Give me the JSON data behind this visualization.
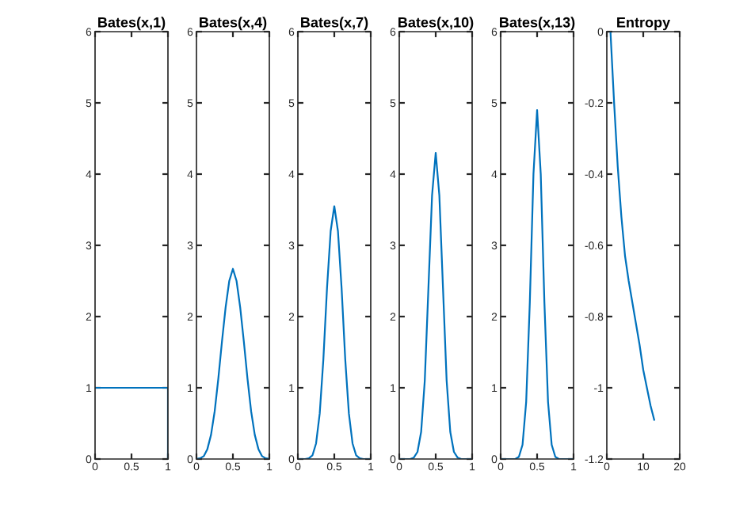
{
  "chart_data": [
    {
      "type": "line",
      "title": "Bates(x,1)",
      "xlim": [
        0,
        1
      ],
      "ylim": [
        0,
        6
      ],
      "xticks": [
        0,
        0.5,
        1
      ],
      "yticks": [
        0,
        1,
        2,
        3,
        4,
        5,
        6
      ],
      "grid": false,
      "legend": false,
      "series": [
        {
          "color": "#0072bd",
          "x": [
            0,
            1,
            1
          ],
          "values": [
            1,
            1,
            0
          ]
        }
      ]
    },
    {
      "type": "line",
      "title": "Bates(x,4)",
      "xlim": [
        0,
        1
      ],
      "ylim": [
        0,
        6
      ],
      "xticks": [
        0,
        0.5,
        1
      ],
      "yticks": [
        0,
        1,
        2,
        3,
        4,
        5,
        6
      ],
      "grid": false,
      "legend": false,
      "series": [
        {
          "color": "#0072bd",
          "x": [
            0,
            0.05,
            0.1,
            0.15,
            0.2,
            0.25,
            0.3,
            0.35,
            0.4,
            0.45,
            0.5,
            0.55,
            0.6,
            0.65,
            0.7,
            0.75,
            0.8,
            0.85,
            0.9,
            0.95,
            1
          ],
          "values": [
            0,
            0.01,
            0.04,
            0.14,
            0.34,
            0.67,
            1.13,
            1.65,
            2.13,
            2.5,
            2.67,
            2.5,
            2.13,
            1.65,
            1.13,
            0.67,
            0.34,
            0.14,
            0.04,
            0.01,
            0
          ]
        }
      ]
    },
    {
      "type": "line",
      "title": "Bates(x,7)",
      "xlim": [
        0,
        1
      ],
      "ylim": [
        0,
        6
      ],
      "xticks": [
        0,
        0.5,
        1
      ],
      "yticks": [
        0,
        1,
        2,
        3,
        4,
        5,
        6
      ],
      "grid": false,
      "legend": false,
      "series": [
        {
          "color": "#0072bd",
          "x": [
            0,
            0.1,
            0.15,
            0.2,
            0.25,
            0.3,
            0.35,
            0.4,
            0.45,
            0.5,
            0.55,
            0.6,
            0.65,
            0.7,
            0.75,
            0.8,
            0.85,
            0.9,
            1
          ],
          "values": [
            0,
            0,
            0.01,
            0.05,
            0.22,
            0.64,
            1.4,
            2.4,
            3.2,
            3.55,
            3.2,
            2.4,
            1.4,
            0.64,
            0.22,
            0.05,
            0.01,
            0,
            0
          ]
        }
      ]
    },
    {
      "type": "line",
      "title": "Bates(x,10)",
      "xlim": [
        0,
        1
      ],
      "ylim": [
        0,
        6
      ],
      "xticks": [
        0,
        0.5,
        1
      ],
      "yticks": [
        0,
        1,
        2,
        3,
        4,
        5,
        6
      ],
      "grid": false,
      "legend": false,
      "series": [
        {
          "color": "#0072bd",
          "x": [
            0,
            0.15,
            0.2,
            0.25,
            0.3,
            0.35,
            0.4,
            0.45,
            0.5,
            0.55,
            0.6,
            0.65,
            0.7,
            0.75,
            0.8,
            0.85,
            1
          ],
          "values": [
            0,
            0,
            0.02,
            0.1,
            0.38,
            1.1,
            2.4,
            3.7,
            4.3,
            3.7,
            2.4,
            1.1,
            0.38,
            0.1,
            0.02,
            0,
            0
          ]
        }
      ]
    },
    {
      "type": "line",
      "title": "Bates(x,13)",
      "xlim": [
        0,
        1
      ],
      "ylim": [
        0,
        6
      ],
      "xticks": [
        0,
        0.5,
        1
      ],
      "yticks": [
        0,
        1,
        2,
        3,
        4,
        5,
        6
      ],
      "grid": false,
      "legend": false,
      "series": [
        {
          "color": "#0072bd",
          "x": [
            0,
            0.2,
            0.25,
            0.3,
            0.35,
            0.4,
            0.45,
            0.5,
            0.55,
            0.6,
            0.65,
            0.7,
            0.75,
            0.8,
            1
          ],
          "values": [
            0,
            0,
            0.03,
            0.2,
            0.8,
            2.2,
            4.0,
            4.9,
            4.0,
            2.2,
            0.8,
            0.2,
            0.03,
            0,
            0
          ]
        }
      ]
    },
    {
      "type": "line",
      "title": "Entropy",
      "xlim": [
        0,
        20
      ],
      "ylim": [
        -1.2,
        0
      ],
      "xticks": [
        0,
        10,
        20
      ],
      "yticks": [
        -1.2,
        -1,
        -0.8,
        -0.6,
        -0.4,
        -0.2,
        0
      ],
      "grid": false,
      "legend": false,
      "series": [
        {
          "color": "#0072bd",
          "x": [
            1,
            2,
            3,
            4,
            5,
            6,
            7,
            8,
            9,
            10,
            11,
            12,
            13
          ],
          "values": [
            0,
            -0.2,
            -0.38,
            -0.52,
            -0.63,
            -0.7,
            -0.76,
            -0.82,
            -0.88,
            -0.95,
            -1.0,
            -1.05,
            -1.09
          ]
        }
      ]
    }
  ]
}
